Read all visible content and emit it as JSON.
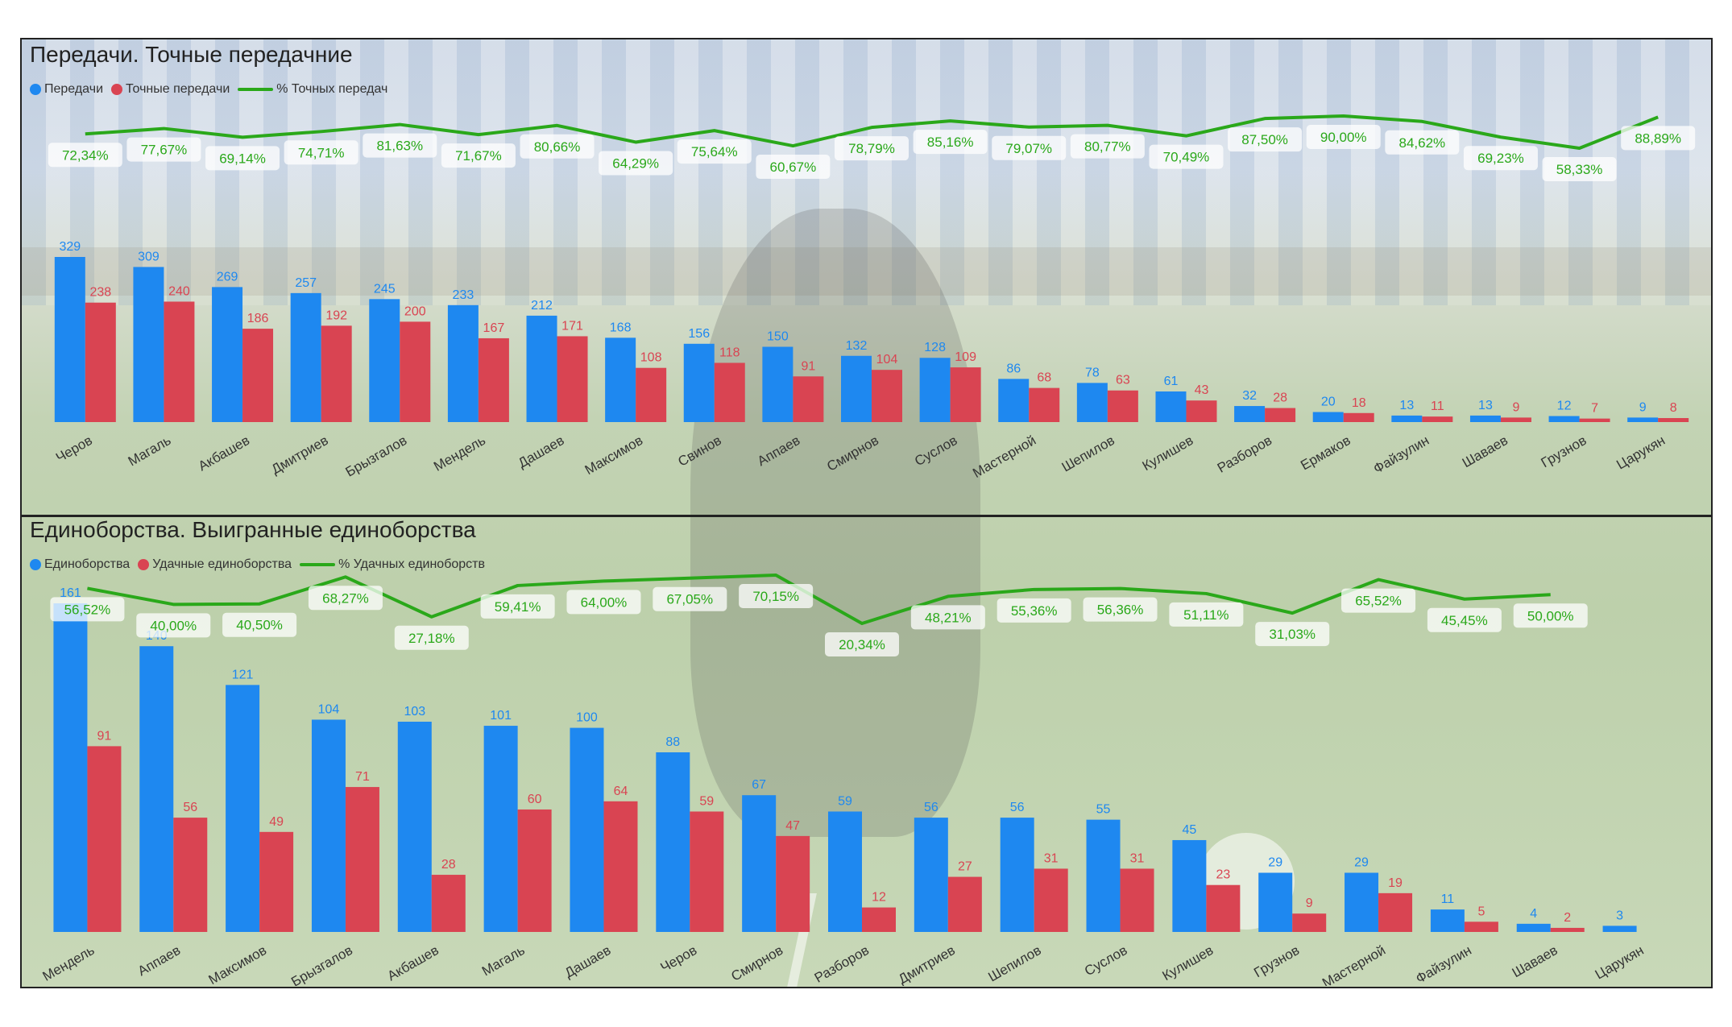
{
  "colors": {
    "series_total": "#1e88f0",
    "series_success": "#d94452",
    "series_percent": "#2aa81a",
    "border": "#222222"
  },
  "chart_data": [
    {
      "type": "bar",
      "title": "Передачи. Точные передачние",
      "categories": [
        "Черов",
        "Магаль",
        "Акбашев",
        "Дмитриев",
        "Брызгалов",
        "Мендель",
        "Дашаев",
        "Максимов",
        "Свинов",
        "Аппаев",
        "Смирнов",
        "Суслов",
        "Мастерной",
        "Шепилов",
        "Кулишев",
        "Разборов",
        "Ермаков",
        "Файзулин",
        "Шаваев",
        "Грузнов",
        "Царукян"
      ],
      "series": [
        {
          "name": "Передачи",
          "kind": "bar",
          "values": [
            329,
            309,
            269,
            257,
            245,
            233,
            212,
            168,
            156,
            150,
            132,
            128,
            86,
            78,
            61,
            32,
            20,
            13,
            13,
            12,
            9
          ]
        },
        {
          "name": "Точные передачи",
          "kind": "bar",
          "values": [
            238,
            240,
            186,
            192,
            200,
            167,
            171,
            108,
            118,
            91,
            104,
            109,
            68,
            63,
            43,
            28,
            18,
            11,
            9,
            7,
            8
          ]
        },
        {
          "name": "% Точных передач",
          "kind": "line",
          "values": [
            72.34,
            77.67,
            69.14,
            74.71,
            81.63,
            71.67,
            80.66,
            64.29,
            75.64,
            60.67,
            78.79,
            85.16,
            79.07,
            80.77,
            70.49,
            87.5,
            90.0,
            84.62,
            69.23,
            58.33,
            88.89
          ],
          "labels": [
            "72,34%",
            "77,67%",
            "69,14%",
            "74,71%",
            "81,63%",
            "71,67%",
            "80,66%",
            "64,29%",
            "75,64%",
            "60,67%",
            "78,79%",
            "85,16%",
            "79,07%",
            "80,77%",
            "70,49%",
            "87,50%",
            "90,00%",
            "84,62%",
            "69,23%",
            "58,33%",
            "88,89%"
          ]
        }
      ],
      "legend_position": "top-left",
      "grid": false
    },
    {
      "type": "bar",
      "title": "Единоборства. Выигранные единоборства",
      "categories": [
        "Мендель",
        "Аппаев",
        "Максимов",
        "Брызгалов",
        "Акбашев",
        "Магаль",
        "Дашаев",
        "Черов",
        "Смирнов",
        "Разборов",
        "Дмитриев",
        "Шепилов",
        "Суслов",
        "Кулишев",
        "Грузнов",
        "Мастерной",
        "Файзулин",
        "Шаваев",
        "Царукян"
      ],
      "series": [
        {
          "name": "Единоборства",
          "kind": "bar",
          "values": [
            161,
            140,
            121,
            104,
            103,
            101,
            100,
            88,
            67,
            59,
            56,
            56,
            55,
            45,
            29,
            29,
            11,
            4,
            3
          ]
        },
        {
          "name": "Удачные единоборства",
          "kind": "bar",
          "values": [
            91,
            56,
            49,
            71,
            28,
            60,
            64,
            59,
            47,
            12,
            27,
            31,
            31,
            23,
            9,
            19,
            5,
            2,
            null
          ]
        },
        {
          "name": "% Удачных единоборств",
          "kind": "line",
          "values": [
            56.52,
            40.0,
            40.5,
            68.27,
            27.18,
            59.41,
            64.0,
            67.05,
            70.15,
            20.34,
            48.21,
            55.36,
            56.36,
            51.11,
            31.03,
            65.52,
            45.45,
            50.0,
            null
          ],
          "labels": [
            "56,52%",
            "40,00%",
            "40,50%",
            "68,27%",
            "27,18%",
            "59,41%",
            "64,00%",
            "67,05%",
            "70,15%",
            "20,34%",
            "48,21%",
            "55,36%",
            "56,36%",
            "51,11%",
            "31,03%",
            "65,52%",
            "45,45%",
            "50,00%",
            ""
          ]
        }
      ],
      "legend_position": "top-left",
      "grid": false
    }
  ]
}
